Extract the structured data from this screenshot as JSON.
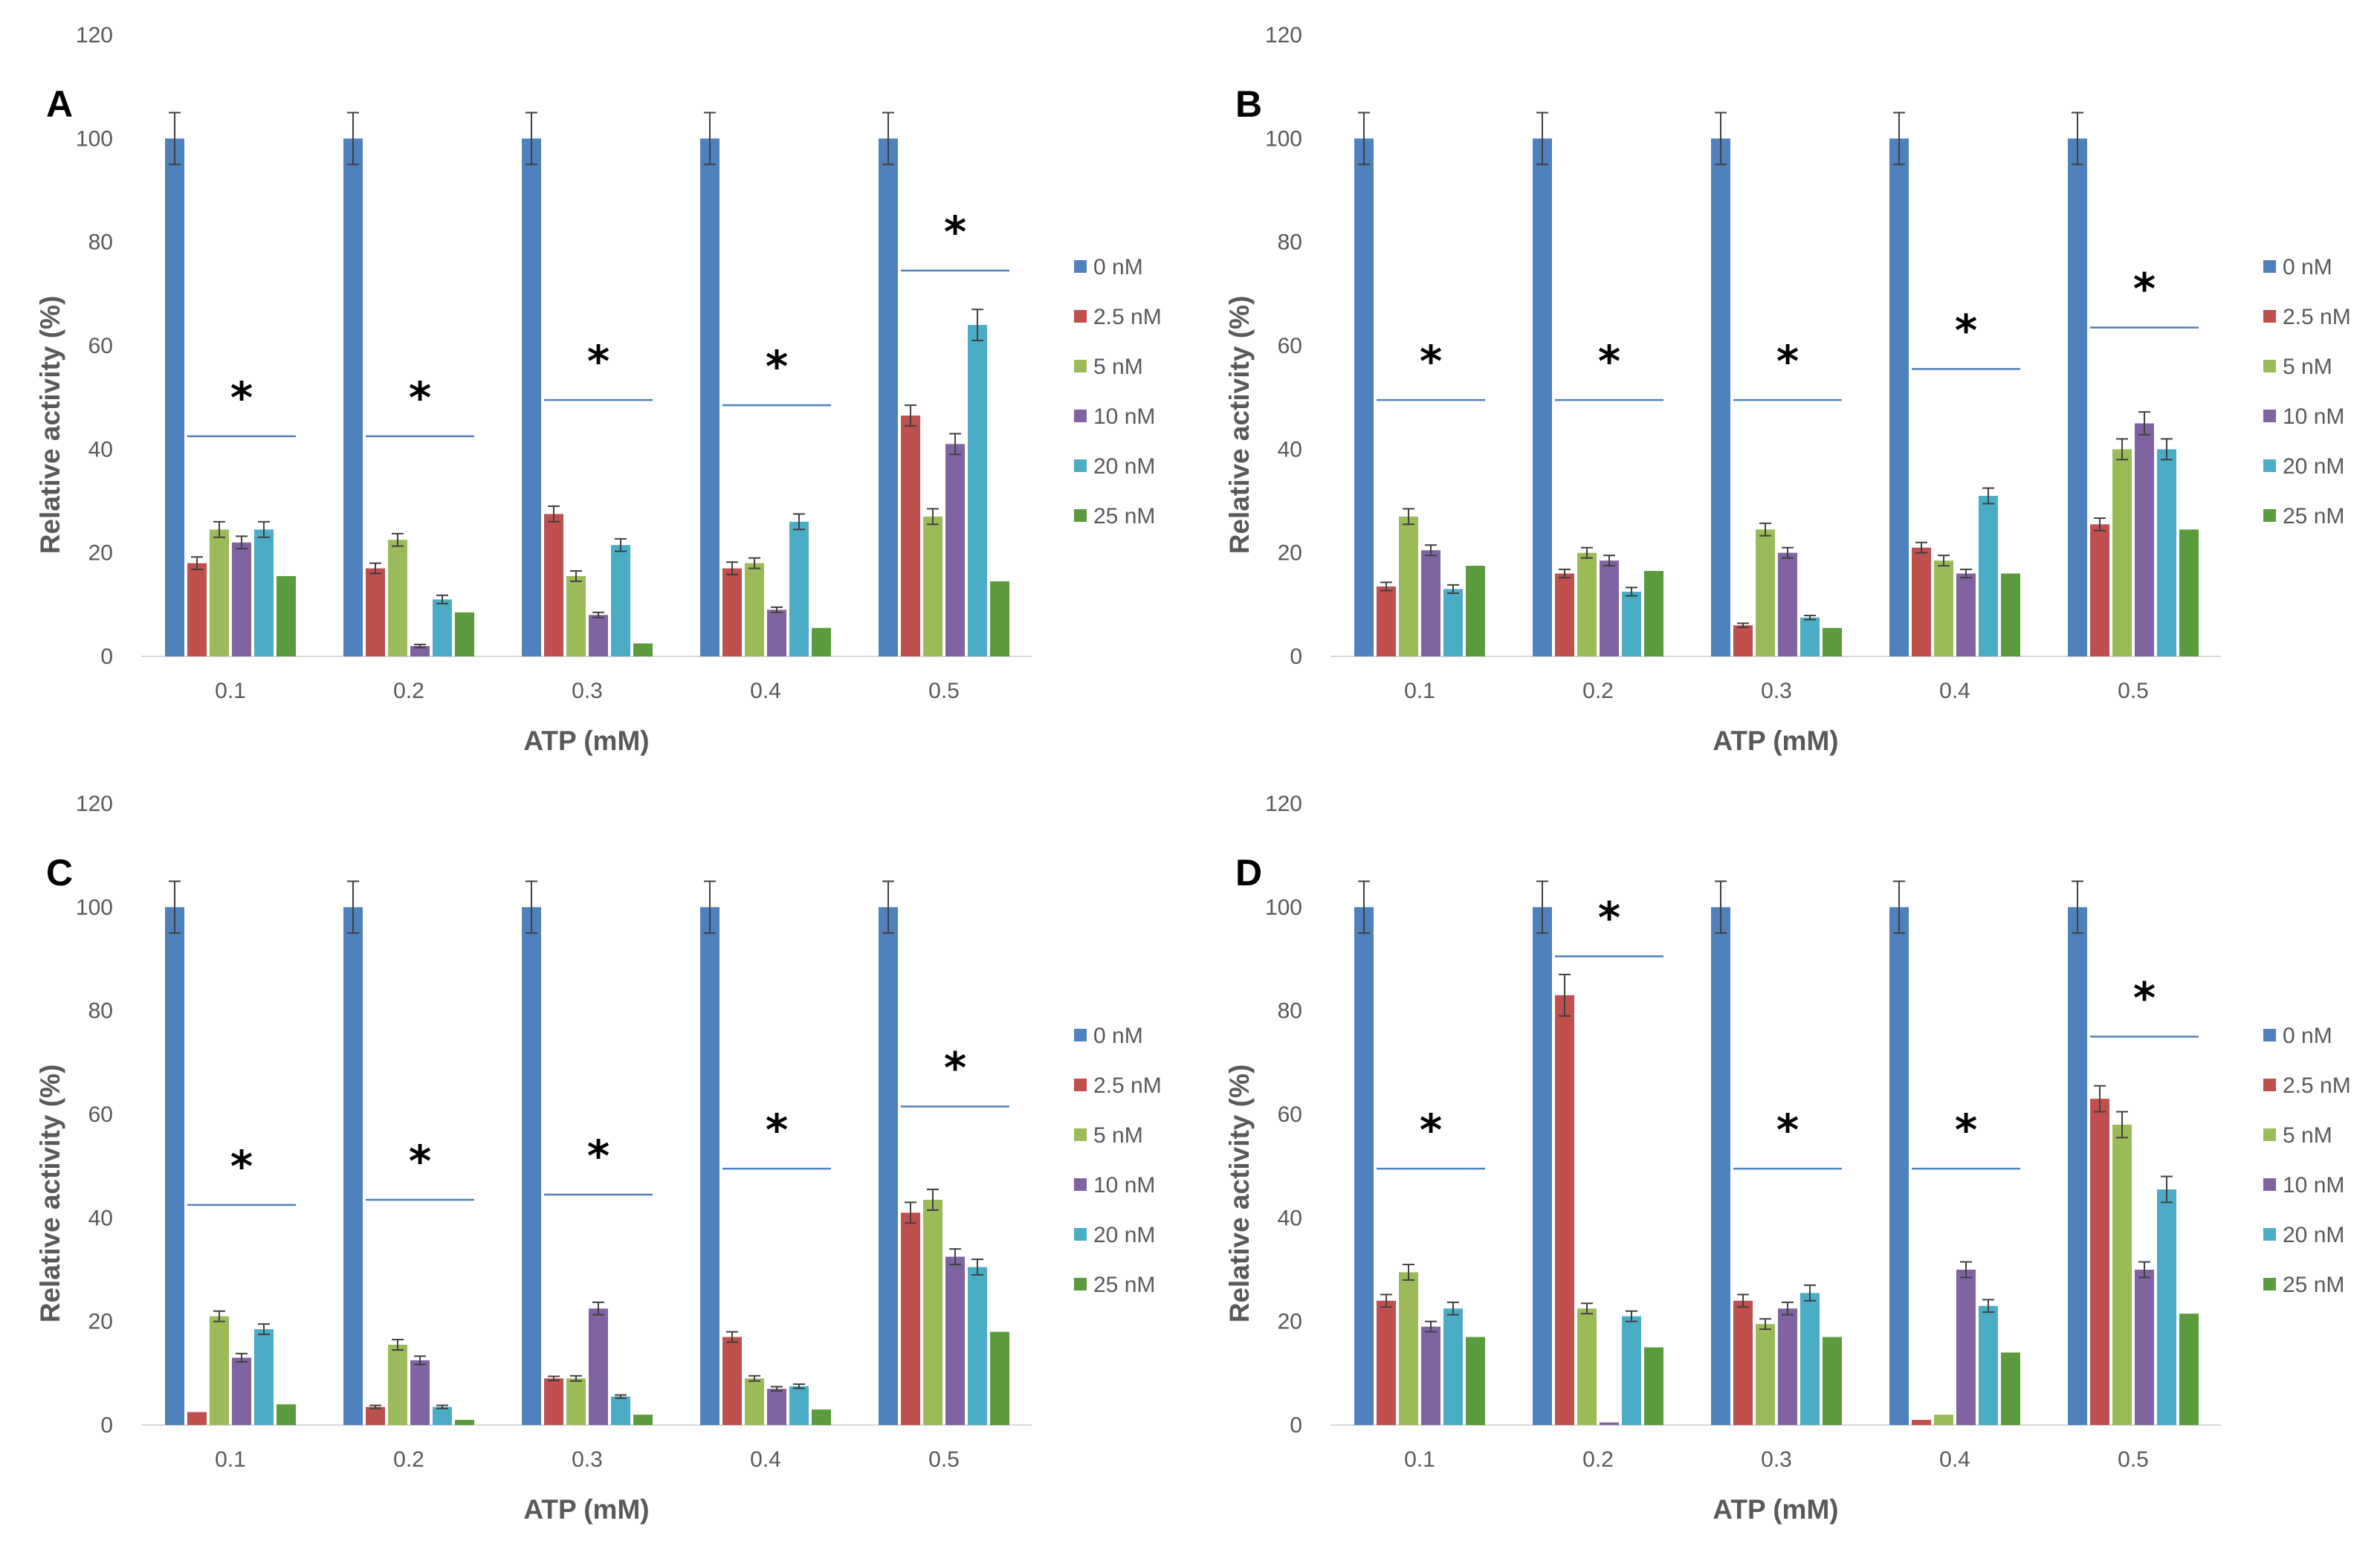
{
  "chart_data": [
    {
      "panel": "A",
      "type": "bar",
      "xlabel": "ATP (mM)",
      "ylabel": "Relative activity (%)",
      "ylim": [
        0,
        120
      ],
      "yticks": [
        "0",
        "20",
        "40",
        "60",
        "80",
        "100",
        "120"
      ],
      "categories": [
        "0.1",
        "0.2",
        "0.3",
        "0.4",
        "0.5"
      ],
      "series": [
        {
          "name": "0 nM",
          "color": "#4F81BD",
          "values": [
            100,
            100,
            100,
            100,
            100
          ],
          "errors": [
            5,
            5,
            5,
            5,
            5
          ]
        },
        {
          "name": "2.5 nM",
          "color": "#C0504D",
          "values": [
            18,
            17,
            27.5,
            17,
            46.5
          ],
          "errors": [
            1.2,
            1,
            1.5,
            1.2,
            2
          ]
        },
        {
          "name": "5 nM",
          "color": "#9BBB59",
          "values": [
            24.5,
            22.5,
            15.5,
            18,
            27
          ],
          "errors": [
            1.5,
            1.2,
            1,
            1,
            1.5
          ]
        },
        {
          "name": "10 nM",
          "color": "#8064A2",
          "values": [
            22,
            2,
            8,
            9,
            41
          ],
          "errors": [
            1.2,
            0.3,
            0.5,
            0.5,
            2
          ]
        },
        {
          "name": "20 nM",
          "color": "#4BACC6",
          "values": [
            24.5,
            11,
            21.5,
            26,
            64
          ],
          "errors": [
            1.5,
            0.8,
            1.2,
            1.5,
            3
          ]
        },
        {
          "name": "25 nM",
          "color": "#5B9B3D",
          "values": [
            15.5,
            8.5,
            2.5,
            5.5,
            14.5
          ],
          "errors": [
            0,
            0,
            0,
            0,
            0
          ]
        }
      ],
      "significance": [
        {
          "label": "*",
          "y": 42.5
        },
        {
          "label": "*",
          "y": 42.5
        },
        {
          "label": "*",
          "y": 49.5
        },
        {
          "label": "*",
          "y": 48.5
        },
        {
          "label": "*",
          "y": 74.5
        }
      ]
    },
    {
      "panel": "B",
      "type": "bar",
      "xlabel": "ATP (mM)",
      "ylabel": "Relative activity (%)",
      "ylim": [
        0,
        120
      ],
      "yticks": [
        "0",
        "20",
        "40",
        "60",
        "80",
        "100",
        "120"
      ],
      "categories": [
        "0.1",
        "0.2",
        "0.3",
        "0.4",
        "0.5"
      ],
      "series": [
        {
          "name": "0 nM",
          "color": "#4F81BD",
          "values": [
            100,
            100,
            100,
            100,
            100
          ],
          "errors": [
            5,
            5,
            5,
            5,
            5
          ]
        },
        {
          "name": "2.5 nM",
          "color": "#C0504D",
          "values": [
            13.5,
            16,
            6,
            21,
            25.5
          ],
          "errors": [
            0.8,
            0.8,
            0.4,
            1,
            1.2
          ]
        },
        {
          "name": "5 nM",
          "color": "#9BBB59",
          "values": [
            27,
            20,
            24.5,
            18.5,
            40
          ],
          "errors": [
            1.5,
            1,
            1.2,
            1,
            2
          ]
        },
        {
          "name": "10 nM",
          "color": "#8064A2",
          "values": [
            20.5,
            18.5,
            20,
            16,
            45
          ],
          "errors": [
            1,
            1,
            1,
            0.8,
            2.2
          ]
        },
        {
          "name": "20 nM",
          "color": "#4BACC6",
          "values": [
            13,
            12.5,
            7.5,
            31,
            40
          ],
          "errors": [
            0.8,
            0.8,
            0.4,
            1.5,
            2
          ]
        },
        {
          "name": "25 nM",
          "color": "#5B9B3D",
          "values": [
            17.5,
            16.5,
            5.5,
            16,
            24.5
          ],
          "errors": [
            0,
            0,
            0,
            0,
            0
          ]
        }
      ],
      "significance": [
        {
          "label": "*",
          "y": 49.5
        },
        {
          "label": "*",
          "y": 49.5
        },
        {
          "label": "*",
          "y": 49.5
        },
        {
          "label": "*",
          "y": 55.5
        },
        {
          "label": "*",
          "y": 63.5
        }
      ]
    },
    {
      "panel": "C",
      "type": "bar",
      "xlabel": "ATP (mM)",
      "ylabel": "Relative activity (%)",
      "ylim": [
        0,
        120
      ],
      "yticks": [
        "0",
        "20",
        "40",
        "60",
        "80",
        "100",
        "120"
      ],
      "categories": [
        "0.1",
        "0.2",
        "0.3",
        "0.4",
        "0.5"
      ],
      "series": [
        {
          "name": "0 nM",
          "color": "#4F81BD",
          "values": [
            100,
            100,
            100,
            100,
            100
          ],
          "errors": [
            5,
            5,
            5,
            5,
            5
          ]
        },
        {
          "name": "2.5 nM",
          "color": "#C0504D",
          "values": [
            2.5,
            3.5,
            9,
            17,
            41
          ],
          "errors": [
            0,
            0.3,
            0.4,
            1,
            2
          ]
        },
        {
          "name": "5 nM",
          "color": "#9BBB59",
          "values": [
            21,
            15.5,
            9,
            9,
            43.5
          ],
          "errors": [
            1,
            1,
            0.5,
            0.5,
            2
          ]
        },
        {
          "name": "10 nM",
          "color": "#8064A2",
          "values": [
            13,
            12.5,
            22.5,
            7,
            32.5
          ],
          "errors": [
            0.8,
            0.8,
            1.2,
            0.4,
            1.5
          ]
        },
        {
          "name": "20 nM",
          "color": "#4BACC6",
          "values": [
            18.5,
            3.5,
            5.5,
            7.5,
            30.5
          ],
          "errors": [
            1,
            0.3,
            0.3,
            0.4,
            1.5
          ]
        },
        {
          "name": "25 nM",
          "color": "#5B9B3D",
          "values": [
            4,
            1,
            2,
            3,
            18
          ],
          "errors": [
            0,
            0,
            0,
            0,
            0
          ]
        }
      ],
      "significance": [
        {
          "label": "*",
          "y": 42.5
        },
        {
          "label": "*",
          "y": 43.5
        },
        {
          "label": "*",
          "y": 44.5
        },
        {
          "label": "*",
          "y": 49.5
        },
        {
          "label": "*",
          "y": 61.5
        }
      ]
    },
    {
      "panel": "D",
      "type": "bar",
      "xlabel": "ATP (mM)",
      "ylabel": "Relative activity (%)",
      "ylim": [
        0,
        120
      ],
      "yticks": [
        "0",
        "20",
        "40",
        "60",
        "80",
        "100",
        "120"
      ],
      "categories": [
        "0.1",
        "0.2",
        "0.3",
        "0.4",
        "0.5"
      ],
      "series": [
        {
          "name": "0 nM",
          "color": "#4F81BD",
          "values": [
            100,
            100,
            100,
            100,
            100
          ],
          "errors": [
            5,
            5,
            5,
            5,
            5
          ]
        },
        {
          "name": "2.5 nM",
          "color": "#C0504D",
          "values": [
            24,
            83,
            24,
            1,
            63
          ],
          "errors": [
            1.2,
            4,
            1.2,
            0,
            2.5
          ]
        },
        {
          "name": "5 nM",
          "color": "#9BBB59",
          "values": [
            29.5,
            22.5,
            19.5,
            2,
            58
          ],
          "errors": [
            1.5,
            1,
            1,
            0,
            2.5
          ]
        },
        {
          "name": "10 nM",
          "color": "#8064A2",
          "values": [
            19,
            0.5,
            22.5,
            30,
            30
          ],
          "errors": [
            1,
            0,
            1.2,
            1.5,
            1.5
          ]
        },
        {
          "name": "20 nM",
          "color": "#4BACC6",
          "values": [
            22.5,
            21,
            25.5,
            23,
            45.5
          ],
          "errors": [
            1.2,
            1,
            1.5,
            1.2,
            2.5
          ]
        },
        {
          "name": "25 nM",
          "color": "#5B9B3D",
          "values": [
            17,
            15,
            17,
            14,
            21.5
          ],
          "errors": [
            0,
            0,
            0,
            0,
            0
          ]
        }
      ],
      "significance": [
        {
          "label": "*",
          "y": 49.5
        },
        {
          "label": "*",
          "y": 90.5
        },
        {
          "label": "*",
          "y": 49.5
        },
        {
          "label": "*",
          "y": 49.5
        },
        {
          "label": "*",
          "y": 75
        }
      ]
    }
  ]
}
